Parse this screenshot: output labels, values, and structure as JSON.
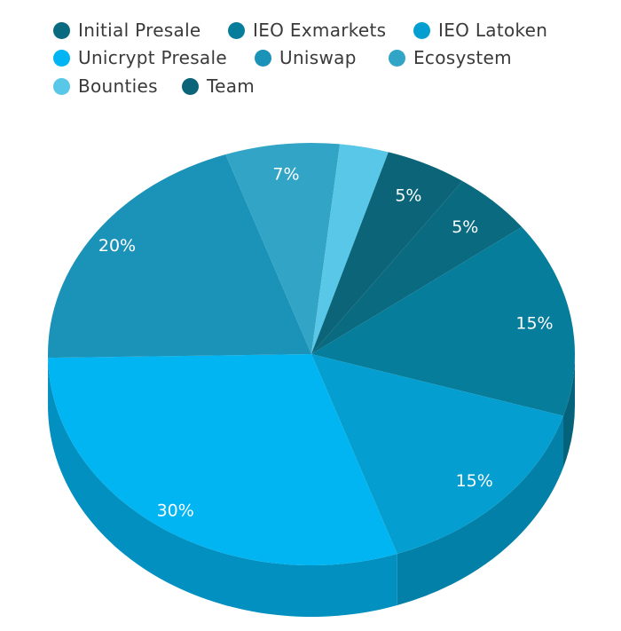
{
  "chart_data": {
    "type": "pie",
    "title": "",
    "legend_position": "top",
    "series": [
      {
        "name": "Initial Presale",
        "value": 5,
        "label": "5%",
        "color": "#0a6a80",
        "side": "#085566"
      },
      {
        "name": "IEO Exmarkets",
        "value": 15,
        "label": "15%",
        "color": "#077d9c",
        "side": "#05627b"
      },
      {
        "name": "IEO Latoken",
        "value": 15,
        "label": "15%",
        "color": "#049fd0",
        "side": "#0380a8"
      },
      {
        "name": "Unicrypt Presale",
        "value": 30,
        "label": "30%",
        "color": "#00b5f2",
        "side": "#0190c0"
      },
      {
        "name": "Uniswap",
        "value": 20,
        "label": "20%",
        "color": "#1b92b8",
        "side": "#157592"
      },
      {
        "name": "Ecosystem",
        "value": 7,
        "label": "7%",
        "color": "#32a5c7",
        "side": "#26859f"
      },
      {
        "name": "Bounties",
        "value": 3,
        "label": "",
        "color": "#58c7e8",
        "side": "#44a2bd"
      },
      {
        "name": "Team",
        "value": 5,
        "label": "5%",
        "color": "#0b6478",
        "side": "#095060"
      }
    ]
  }
}
